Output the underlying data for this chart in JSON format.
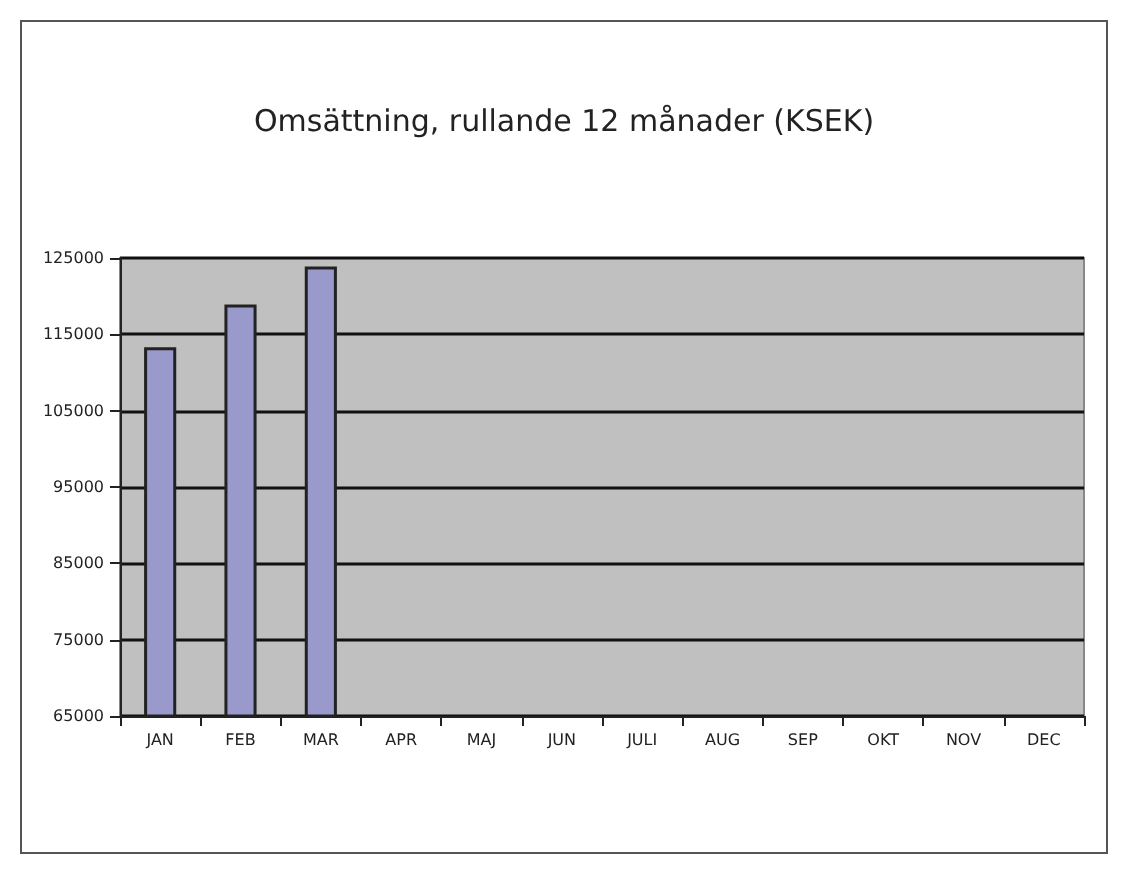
{
  "chart_data": {
    "type": "bar",
    "title": "Omsättning, rullande 12 månader (KSEK)",
    "categories": [
      "JAN",
      "FEB",
      "MAR",
      "APR",
      "MAJ",
      "JUN",
      "JULI",
      "AUG",
      "SEP",
      "OKT",
      "NOV",
      "DEC"
    ],
    "values": [
      113300,
      118900,
      123900,
      null,
      null,
      null,
      null,
      null,
      null,
      null,
      null,
      null
    ],
    "color": "#9999cc",
    "ylim": [
      65000,
      125000
    ],
    "yticks": [
      65000,
      75000,
      85000,
      95000,
      105000,
      115000,
      125000
    ],
    "grid": "y"
  }
}
